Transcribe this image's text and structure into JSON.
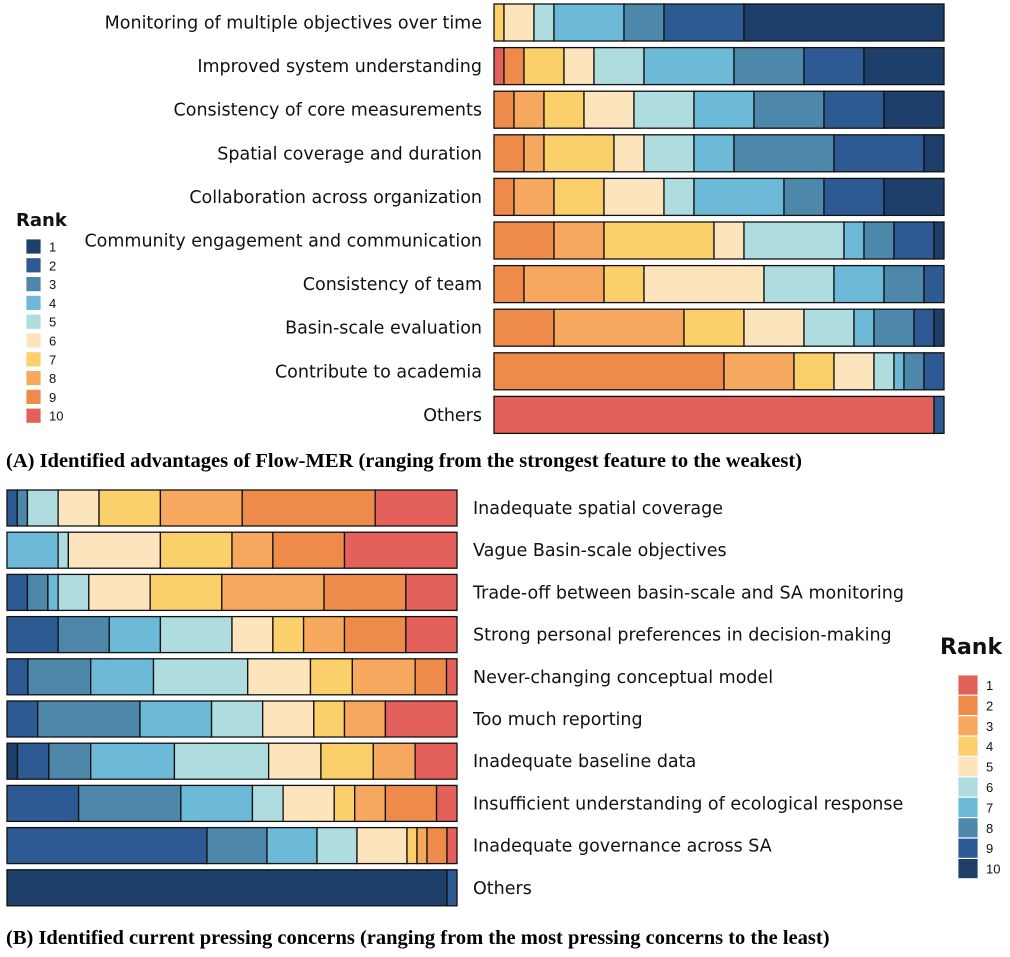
{
  "chart_data": [
    {
      "type": "bar",
      "stacked": true,
      "orientation": "horizontal",
      "title": "(A) Identified advantages of Flow-MER (ranging from the strongest feature to the weakest)",
      "legend_title": "Rank",
      "legend_placement": "left",
      "rank_order": [
        10,
        9,
        8,
        7,
        6,
        5,
        4,
        3,
        2,
        1
      ],
      "rank_labels": [
        "1",
        "2",
        "3",
        "4",
        "5",
        "6",
        "7",
        "8",
        "9",
        "10"
      ],
      "colors": {
        "1": "#1f3f6b",
        "2": "#2d5a92",
        "3": "#4d88aa",
        "4": "#6cbad8",
        "5": "#aedcdf",
        "6": "#fce5bd",
        "7": "#fbcf69",
        "8": "#f5a85e",
        "9": "#ef8b4a",
        "10": "#e4605a"
      },
      "categories": [
        {
          "label": "Monitoring of multiple objectives over time",
          "counts": {
            "10": 0,
            "9": 0,
            "8": 0,
            "7": 1,
            "6": 3,
            "5": 2,
            "4": 7,
            "3": 4,
            "2": 8,
            "1": 20
          }
        },
        {
          "label": "Improved system understanding",
          "counts": {
            "10": 1,
            "9": 2,
            "8": 0,
            "7": 4,
            "6": 3,
            "5": 5,
            "4": 9,
            "3": 7,
            "2": 6,
            "1": 8
          }
        },
        {
          "label": "Consistency of core measurements",
          "counts": {
            "10": 0,
            "9": 2,
            "8": 3,
            "7": 4,
            "6": 5,
            "5": 6,
            "4": 6,
            "3": 7,
            "2": 6,
            "1": 6
          }
        },
        {
          "label": "Spatial coverage and duration",
          "counts": {
            "10": 0,
            "9": 3,
            "8": 2,
            "7": 7,
            "6": 3,
            "5": 5,
            "4": 4,
            "3": 10,
            "2": 9,
            "1": 2
          }
        },
        {
          "label": "Collaboration across organization",
          "counts": {
            "10": 0,
            "9": 2,
            "8": 4,
            "7": 5,
            "6": 6,
            "5": 3,
            "4": 9,
            "3": 4,
            "2": 6,
            "1": 6
          }
        },
        {
          "label": "Community engagement and communication",
          "counts": {
            "10": 0,
            "9": 6,
            "8": 5,
            "7": 11,
            "6": 3,
            "5": 10,
            "4": 2,
            "3": 3,
            "2": 4,
            "1": 1
          }
        },
        {
          "label": "Consistency of team",
          "counts": {
            "10": 0,
            "9": 3,
            "8": 8,
            "7": 4,
            "6": 12,
            "5": 7,
            "4": 5,
            "3": 4,
            "2": 2,
            "1": 0
          }
        },
        {
          "label": "Basin-scale evaluation",
          "counts": {
            "10": 0,
            "9": 6,
            "8": 13,
            "7": 6,
            "6": 6,
            "5": 5,
            "4": 2,
            "3": 4,
            "2": 2,
            "1": 1
          }
        },
        {
          "label": "Contribute to academia",
          "counts": {
            "10": 0,
            "9": 23,
            "8": 7,
            "7": 4,
            "6": 4,
            "5": 2,
            "4": 1,
            "3": 2,
            "2": 2,
            "1": 0
          }
        },
        {
          "label": "Others",
          "counts": {
            "10": 44,
            "9": 0,
            "8": 0,
            "7": 0,
            "6": 0,
            "5": 0,
            "4": 0,
            "3": 0,
            "2": 1,
            "1": 0
          }
        }
      ]
    },
    {
      "type": "bar",
      "stacked": true,
      "orientation": "horizontal",
      "title": "(B) Identified current pressing concerns (ranging from the most pressing concerns to the least)",
      "legend_title": "Rank",
      "legend_placement": "right",
      "rank_order": [
        10,
        9,
        8,
        7,
        6,
        5,
        4,
        3,
        2,
        1
      ],
      "rank_labels": [
        "1",
        "2",
        "3",
        "4",
        "5",
        "6",
        "7",
        "8",
        "9",
        "10"
      ],
      "colors": {
        "1": "#e4605a",
        "2": "#ef8b4a",
        "3": "#f5a85e",
        "4": "#fbcf69",
        "5": "#fce5bd",
        "6": "#aedcdf",
        "7": "#6cbad8",
        "8": "#4d88aa",
        "9": "#2d5a92",
        "10": "#1f3f6b"
      },
      "categories": [
        {
          "label": "Inadequate spatial coverage",
          "counts": {
            "10": 0,
            "9": 1,
            "8": 1,
            "7": 0,
            "6": 3,
            "5": 4,
            "4": 6,
            "3": 8,
            "2": 13,
            "1": 8
          }
        },
        {
          "label": "Vague Basin-scale objectives",
          "counts": {
            "10": 0,
            "9": 0,
            "8": 0,
            "7": 5,
            "6": 1,
            "5": 9,
            "4": 7,
            "3": 4,
            "2": 7,
            "1": 11
          }
        },
        {
          "label": "Trade-off between basin-scale and SA monitoring",
          "counts": {
            "10": 0,
            "9": 2,
            "8": 2,
            "7": 1,
            "6": 3,
            "5": 6,
            "4": 7,
            "3": 10,
            "2": 8,
            "1": 5
          }
        },
        {
          "label": "Strong personal preferences in decision-making",
          "counts": {
            "10": 0,
            "9": 5,
            "8": 5,
            "7": 5,
            "6": 7,
            "5": 4,
            "4": 3,
            "3": 4,
            "2": 6,
            "1": 5
          }
        },
        {
          "label": "Never-changing conceptual model",
          "counts": {
            "10": 0,
            "9": 2,
            "8": 6,
            "7": 6,
            "6": 9,
            "5": 6,
            "4": 4,
            "3": 6,
            "2": 3,
            "1": 1
          }
        },
        {
          "label": "Too much reporting",
          "counts": {
            "10": 0,
            "9": 3,
            "8": 10,
            "7": 7,
            "6": 5,
            "5": 5,
            "4": 3,
            "3": 4,
            "2": 0,
            "1": 7
          }
        },
        {
          "label": "Inadequate baseline data",
          "counts": {
            "10": 1,
            "9": 3,
            "8": 4,
            "7": 8,
            "6": 9,
            "5": 5,
            "4": 5,
            "3": 4,
            "2": 0,
            "1": 4
          }
        },
        {
          "label": "Insufficient understanding of ecological response",
          "counts": {
            "10": 0,
            "9": 7,
            "8": 10,
            "7": 7,
            "6": 3,
            "5": 5,
            "4": 2,
            "3": 3,
            "2": 5,
            "1": 2
          }
        },
        {
          "label": "Inadequate governance across SA",
          "counts": {
            "10": 0,
            "9": 20,
            "8": 6,
            "7": 5,
            "6": 4,
            "5": 5,
            "4": 1,
            "3": 1,
            "2": 2,
            "1": 1
          }
        },
        {
          "label": "Others",
          "counts": {
            "10": 44,
            "9": 1,
            "8": 0,
            "7": 0,
            "6": 0,
            "5": 0,
            "4": 0,
            "3": 0,
            "2": 0,
            "1": 0
          }
        }
      ]
    }
  ]
}
